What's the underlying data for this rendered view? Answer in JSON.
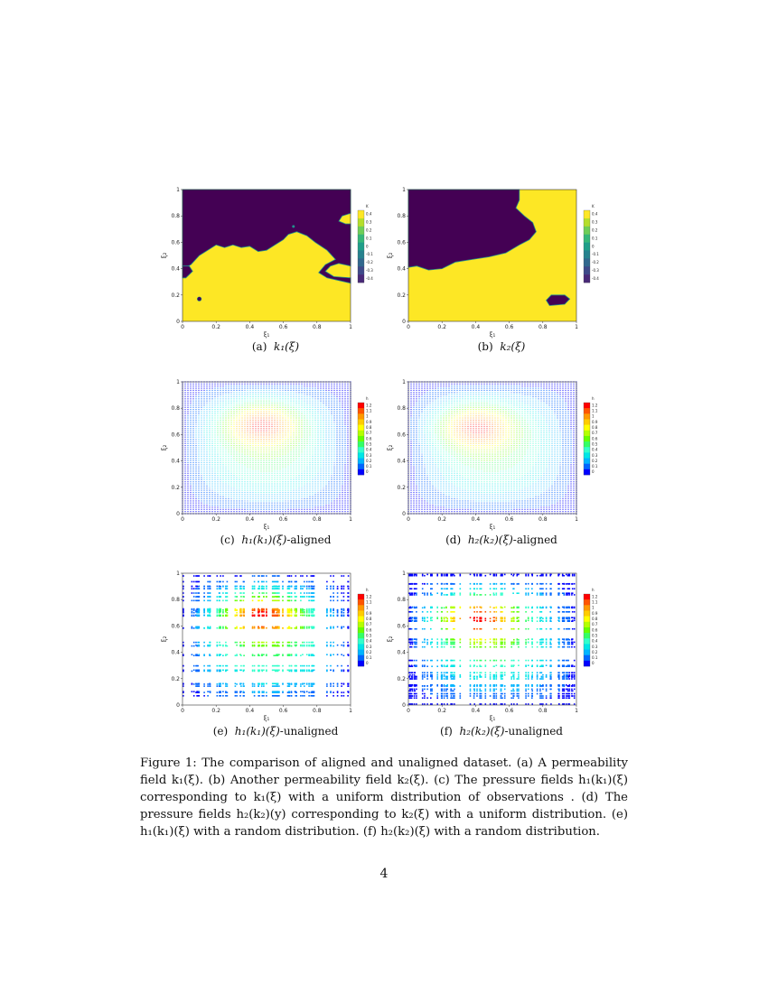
{
  "panels": [
    {
      "id": "a",
      "type": "field",
      "subcaption_prefix": "(a)",
      "subcaption_math": "k₁(ξ)",
      "colorbar_title": "K",
      "colorbar_ticks": [
        "0.4",
        "0.3",
        "0.2",
        "0.1",
        "0",
        "-0.1",
        "-0.2",
        "-0.3",
        "-0.4"
      ],
      "colors": {
        "low": "#440154",
        "high": "#fde725",
        "edge": "#21918c"
      }
    },
    {
      "id": "b",
      "type": "field",
      "subcaption_prefix": "(b)",
      "subcaption_math": "k₂(ξ)",
      "colorbar_title": "K",
      "colorbar_ticks": [
        "0.4",
        "0.3",
        "0.2",
        "0.1",
        "0",
        "-0.1",
        "-0.2",
        "-0.3",
        "-0.4"
      ],
      "colors": {
        "low": "#440154",
        "high": "#fde725",
        "edge": "#21918c"
      }
    },
    {
      "id": "c",
      "type": "aligned",
      "subcaption_prefix": "(c)",
      "subcaption_math": "h₁(k₁)(ξ)",
      "subcaption_suffix": "-aligned",
      "colorbar_title": "h",
      "colorbar_ticks": [
        "1.2",
        "1.1",
        "1",
        "0.9",
        "0.8",
        "0.7",
        "0.6",
        "0.5",
        "0.4",
        "0.3",
        "0.2",
        "0.1",
        "0"
      ],
      "peak": [
        0.47,
        0.68
      ]
    },
    {
      "id": "d",
      "type": "aligned",
      "subcaption_prefix": "(d)",
      "subcaption_math": "h₂(k₂)(ξ)",
      "subcaption_suffix": "-aligned",
      "colorbar_title": "h",
      "colorbar_ticks": [
        "1.2",
        "1.1",
        "1",
        "0.9",
        "0.8",
        "0.7",
        "0.6",
        "0.5",
        "0.4",
        "0.3",
        "0.2",
        "0.1",
        "0"
      ],
      "peak": [
        0.4,
        0.66
      ]
    },
    {
      "id": "e",
      "type": "unaligned",
      "subcaption_prefix": "(e)",
      "subcaption_math": "h₁(k₁)(ξ)",
      "subcaption_suffix": "-unaligned",
      "colorbar_title": "h",
      "colorbar_ticks": [
        "1.2",
        "1.1",
        "1",
        "0.9",
        "0.8",
        "0.7",
        "0.6",
        "0.5",
        "0.4",
        "0.3",
        "0.2",
        "0.1",
        "0"
      ],
      "peak": [
        0.47,
        0.68
      ]
    },
    {
      "id": "f",
      "type": "unaligned",
      "subcaption_prefix": "(f)",
      "subcaption_math": "h₂(k₂)(ξ)",
      "subcaption_suffix": "-unaligned",
      "colorbar_title": "h",
      "colorbar_ticks": [
        "1.2",
        "1.1",
        "1",
        "0.9",
        "0.8",
        "0.7",
        "0.6",
        "0.5",
        "0.4",
        "0.3",
        "0.2",
        "0.1",
        "0"
      ],
      "peak": [
        0.4,
        0.66
      ]
    }
  ],
  "axes": {
    "x_ticks": [
      "0",
      "0.2",
      "0.4",
      "0.6",
      "0.8",
      "1"
    ],
    "y_ticks": [
      "0",
      "0.2",
      "0.4",
      "0.6",
      "0.8",
      "1"
    ],
    "x_label": "ξ₁",
    "y_label": "ξ₂"
  },
  "rainbow": [
    "#0000ff",
    "#0066ff",
    "#00b4ff",
    "#00e6e6",
    "#33ffcc",
    "#33ff66",
    "#66ff00",
    "#b4ff00",
    "#ffff00",
    "#ffcc00",
    "#ff9900",
    "#ff5500",
    "#ff0000"
  ],
  "caption": {
    "text": "Figure 1: The comparison of aligned and unaligned dataset. (a) A permeability field k₁(ξ). (b) Another permeability field k₂(ξ). (c) The pressure fields h₁(k₁)(ξ) corresponding to k₁(ξ) with a uniform distribution of observations . (d) The pressure fields h₂(k₂)(y) corresponding to k₂(ξ) with a uniform distribution. (e) h₁(k₁)(ξ) with a random distribution. (f) h₂(k₂)(ξ) with a random distribution."
  },
  "page_number": "4"
}
